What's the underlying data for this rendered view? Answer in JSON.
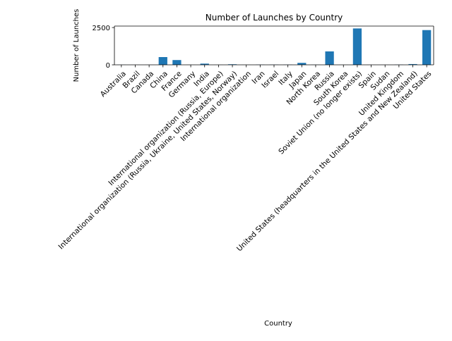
{
  "chart_data": {
    "type": "bar",
    "title": "Number of Launches by Country",
    "xlabel": "Country",
    "ylabel": "Number of Launches",
    "ylim": [
      0,
      2600
    ],
    "yticks": [
      0,
      2500
    ],
    "grid": false,
    "bar_color": "#1f77b4",
    "categories": [
      "Australia",
      "Brazil",
      "Canada",
      "China",
      "France",
      "Germany",
      "India",
      "International organization (Russia, Europe)",
      "International organization (Russia, Ukraine, United States, Norway)",
      "International organization",
      "Iran",
      "Israel",
      "Italy",
      "Japan",
      "North Korea",
      "Russia",
      "South Korea",
      "Soviet Union (no longer exists)",
      "Spain",
      "Sudan",
      "United Kingdom",
      "United States (headquarters in the United States and New Zealand)",
      "United States"
    ],
    "values": [
      5,
      2,
      2,
      520,
      320,
      3,
      80,
      3,
      36,
      3,
      10,
      10,
      10,
      130,
      6,
      900,
      3,
      2440,
      2,
      2,
      12,
      50,
      2330
    ]
  }
}
